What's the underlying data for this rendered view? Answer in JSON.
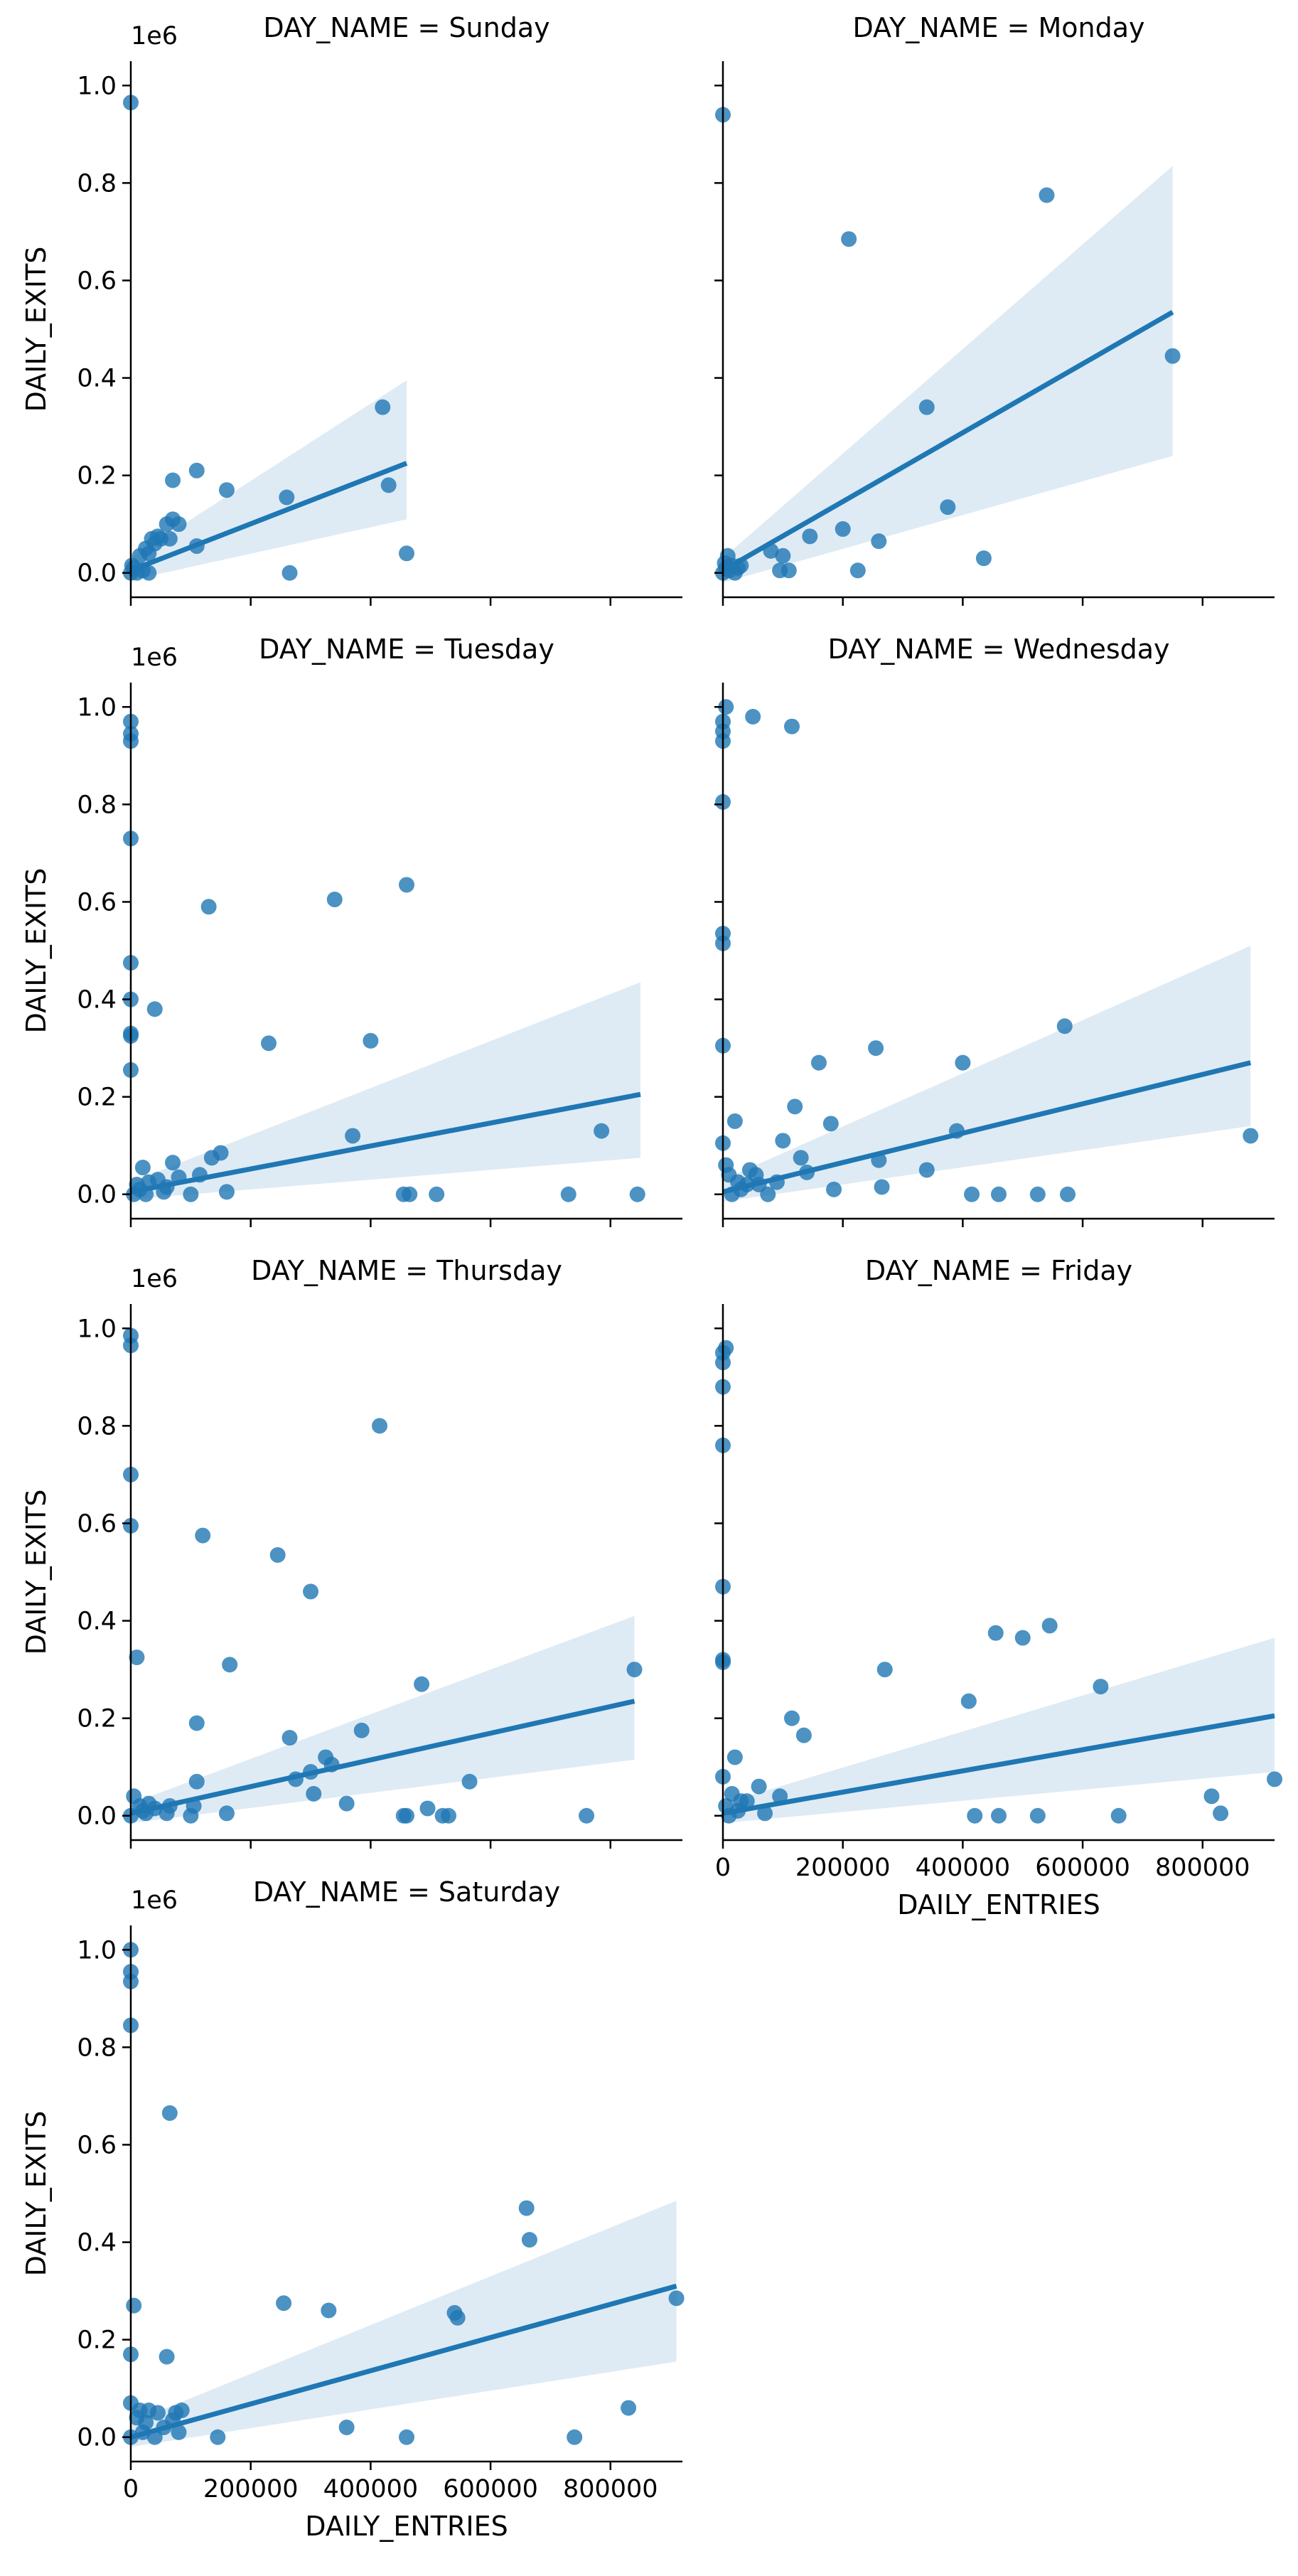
{
  "chart_data": {
    "type": "scatter",
    "facet_variable": "DAY_NAME",
    "xlabel": "DAILY_ENTRIES",
    "ylabel": "DAILY_EXITS",
    "y_offset_label": "1e6",
    "xlim": [
      0,
      920000
    ],
    "ylim": [
      -50000,
      1050000
    ],
    "x_ticks": [
      0,
      200000,
      400000,
      600000,
      800000
    ],
    "x_tick_labels": [
      "0",
      "200000",
      "400000",
      "600000",
      "800000"
    ],
    "y_ticks": [
      0,
      200000,
      400000,
      600000,
      800000,
      1000000
    ],
    "y_tick_labels": [
      "0.0",
      "0.2",
      "0.4",
      "0.6",
      "0.8",
      "1.0"
    ],
    "grid": false,
    "colors": {
      "points": "#1f77b4",
      "line": "#1f77b4",
      "band": "#1f77b4"
    },
    "panels": [
      {
        "title": "DAY_NAME = Sunday",
        "points": [
          [
            0,
            965000
          ],
          [
            0,
            0
          ],
          [
            2000,
            15000
          ],
          [
            5000,
            10000
          ],
          [
            10000,
            0
          ],
          [
            15000,
            35000
          ],
          [
            20000,
            5000
          ],
          [
            25000,
            50000
          ],
          [
            30000,
            40000
          ],
          [
            35000,
            70000
          ],
          [
            40000,
            60000
          ],
          [
            45000,
            75000
          ],
          [
            50000,
            70000
          ],
          [
            30000,
            0
          ],
          [
            60000,
            100000
          ],
          [
            65000,
            70000
          ],
          [
            70000,
            190000
          ],
          [
            70000,
            110000
          ],
          [
            80000,
            100000
          ],
          [
            110000,
            210000
          ],
          [
            110000,
            55000
          ],
          [
            160000,
            170000
          ],
          [
            260000,
            155000
          ],
          [
            265000,
            0
          ],
          [
            420000,
            340000
          ],
          [
            430000,
            180000
          ],
          [
            460000,
            40000
          ]
        ],
        "line": {
          "x0": 0,
          "y0": 5000,
          "x1": 460000,
          "y1": 225000
        },
        "band": {
          "upper_left": 30000,
          "upper_right": 395000,
          "lower_left": -15000,
          "lower_right": 110000
        }
      },
      {
        "title": "DAY_NAME = Monday",
        "points": [
          [
            0,
            940000
          ],
          [
            0,
            0
          ],
          [
            3000,
            20000
          ],
          [
            5000,
            10000
          ],
          [
            8000,
            35000
          ],
          [
            10000,
            5000
          ],
          [
            15000,
            15000
          ],
          [
            20000,
            0
          ],
          [
            25000,
            10000
          ],
          [
            30000,
            15000
          ],
          [
            80000,
            45000
          ],
          [
            95000,
            5000
          ],
          [
            100000,
            35000
          ],
          [
            110000,
            5000
          ],
          [
            145000,
            75000
          ],
          [
            200000,
            90000
          ],
          [
            210000,
            685000
          ],
          [
            225000,
            5000
          ],
          [
            260000,
            65000
          ],
          [
            340000,
            340000
          ],
          [
            375000,
            135000
          ],
          [
            435000,
            30000
          ],
          [
            540000,
            775000
          ],
          [
            750000,
            445000
          ]
        ],
        "line": {
          "x0": 0,
          "y0": 5000,
          "x1": 750000,
          "y1": 535000
        },
        "band": {
          "upper_left": 30000,
          "upper_right": 835000,
          "lower_left": -20000,
          "lower_right": 240000
        }
      },
      {
        "title": "DAY_NAME = Tuesday",
        "points": [
          [
            0,
            970000
          ],
          [
            0,
            945000
          ],
          [
            0,
            930000
          ],
          [
            0,
            730000
          ],
          [
            0,
            475000
          ],
          [
            0,
            400000
          ],
          [
            0,
            330000
          ],
          [
            0,
            325000
          ],
          [
            0,
            255000
          ],
          [
            5000,
            0
          ],
          [
            10000,
            20000
          ],
          [
            15000,
            10000
          ],
          [
            20000,
            55000
          ],
          [
            25000,
            0
          ],
          [
            30000,
            25000
          ],
          [
            40000,
            380000
          ],
          [
            45000,
            30000
          ],
          [
            55000,
            5000
          ],
          [
            60000,
            15000
          ],
          [
            70000,
            65000
          ],
          [
            80000,
            35000
          ],
          [
            100000,
            0
          ],
          [
            115000,
            40000
          ],
          [
            130000,
            590000
          ],
          [
            135000,
            75000
          ],
          [
            150000,
            85000
          ],
          [
            160000,
            5000
          ],
          [
            230000,
            310000
          ],
          [
            340000,
            605000
          ],
          [
            370000,
            120000
          ],
          [
            400000,
            315000
          ],
          [
            455000,
            0
          ],
          [
            460000,
            635000
          ],
          [
            465000,
            0
          ],
          [
            510000,
            0
          ],
          [
            730000,
            0
          ],
          [
            785000,
            130000
          ],
          [
            845000,
            0
          ]
        ],
        "line": {
          "x0": 0,
          "y0": 5000,
          "x1": 850000,
          "y1": 205000
        },
        "band": {
          "upper_left": 25000,
          "upper_right": 435000,
          "lower_left": -10000,
          "lower_right": 75000
        }
      },
      {
        "title": "DAY_NAME = Wednesday",
        "points": [
          [
            0,
            970000
          ],
          [
            0,
            950000
          ],
          [
            0,
            930000
          ],
          [
            0,
            805000
          ],
          [
            0,
            535000
          ],
          [
            0,
            515000
          ],
          [
            0,
            305000
          ],
          [
            0,
            105000
          ],
          [
            5000,
            1000000
          ],
          [
            5000,
            60000
          ],
          [
            10000,
            40000
          ],
          [
            15000,
            0
          ],
          [
            20000,
            150000
          ],
          [
            25000,
            25000
          ],
          [
            30000,
            10000
          ],
          [
            40000,
            20000
          ],
          [
            45000,
            50000
          ],
          [
            50000,
            980000
          ],
          [
            55000,
            40000
          ],
          [
            60000,
            20000
          ],
          [
            75000,
            0
          ],
          [
            90000,
            25000
          ],
          [
            100000,
            110000
          ],
          [
            115000,
            960000
          ],
          [
            120000,
            180000
          ],
          [
            130000,
            75000
          ],
          [
            140000,
            45000
          ],
          [
            160000,
            270000
          ],
          [
            180000,
            145000
          ],
          [
            185000,
            10000
          ],
          [
            255000,
            300000
          ],
          [
            260000,
            70000
          ],
          [
            265000,
            15000
          ],
          [
            340000,
            50000
          ],
          [
            390000,
            130000
          ],
          [
            400000,
            270000
          ],
          [
            415000,
            0
          ],
          [
            460000,
            0
          ],
          [
            525000,
            0
          ],
          [
            570000,
            345000
          ],
          [
            575000,
            0
          ],
          [
            880000,
            120000
          ]
        ],
        "line": {
          "x0": 0,
          "y0": 5000,
          "x1": 880000,
          "y1": 270000
        },
        "band": {
          "upper_left": 30000,
          "upper_right": 510000,
          "lower_left": -15000,
          "lower_right": 140000
        }
      },
      {
        "title": "DAY_NAME = Thursday",
        "points": [
          [
            0,
            985000
          ],
          [
            0,
            965000
          ],
          [
            0,
            700000
          ],
          [
            0,
            595000
          ],
          [
            0,
            0
          ],
          [
            5000,
            40000
          ],
          [
            10000,
            325000
          ],
          [
            15000,
            20000
          ],
          [
            20000,
            10000
          ],
          [
            25000,
            5000
          ],
          [
            30000,
            25000
          ],
          [
            40000,
            15000
          ],
          [
            60000,
            5000
          ],
          [
            65000,
            20000
          ],
          [
            100000,
            0
          ],
          [
            105000,
            20000
          ],
          [
            110000,
            70000
          ],
          [
            110000,
            190000
          ],
          [
            120000,
            575000
          ],
          [
            160000,
            5000
          ],
          [
            165000,
            310000
          ],
          [
            245000,
            535000
          ],
          [
            265000,
            160000
          ],
          [
            275000,
            75000
          ],
          [
            300000,
            90000
          ],
          [
            300000,
            460000
          ],
          [
            305000,
            45000
          ],
          [
            325000,
            120000
          ],
          [
            335000,
            105000
          ],
          [
            360000,
            25000
          ],
          [
            385000,
            175000
          ],
          [
            415000,
            800000
          ],
          [
            455000,
            0
          ],
          [
            460000,
            0
          ],
          [
            485000,
            270000
          ],
          [
            495000,
            15000
          ],
          [
            520000,
            0
          ],
          [
            530000,
            0
          ],
          [
            565000,
            70000
          ],
          [
            760000,
            0
          ],
          [
            840000,
            300000
          ]
        ],
        "line": {
          "x0": 0,
          "y0": 5000,
          "x1": 840000,
          "y1": 235000
        },
        "band": {
          "upper_left": 25000,
          "upper_right": 410000,
          "lower_left": -15000,
          "lower_right": 115000
        }
      },
      {
        "title": "DAY_NAME = Friday",
        "points": [
          [
            0,
            950000
          ],
          [
            0,
            930000
          ],
          [
            0,
            880000
          ],
          [
            0,
            760000
          ],
          [
            0,
            470000
          ],
          [
            0,
            320000
          ],
          [
            0,
            315000
          ],
          [
            0,
            80000
          ],
          [
            5000,
            960000
          ],
          [
            5000,
            20000
          ],
          [
            10000,
            0
          ],
          [
            15000,
            45000
          ],
          [
            20000,
            120000
          ],
          [
            25000,
            10000
          ],
          [
            30000,
            30000
          ],
          [
            40000,
            30000
          ],
          [
            60000,
            60000
          ],
          [
            70000,
            5000
          ],
          [
            95000,
            40000
          ],
          [
            115000,
            200000
          ],
          [
            135000,
            165000
          ],
          [
            270000,
            300000
          ],
          [
            410000,
            235000
          ],
          [
            420000,
            0
          ],
          [
            455000,
            375000
          ],
          [
            460000,
            0
          ],
          [
            500000,
            365000
          ],
          [
            525000,
            0
          ],
          [
            545000,
            390000
          ],
          [
            630000,
            265000
          ],
          [
            660000,
            0
          ],
          [
            815000,
            40000
          ],
          [
            830000,
            5000
          ],
          [
            920000,
            75000
          ]
        ],
        "line": {
          "x0": 0,
          "y0": 5000,
          "x1": 920000,
          "y1": 205000
        },
        "band": {
          "upper_left": 25000,
          "upper_right": 365000,
          "lower_left": -15000,
          "lower_right": 90000
        }
      },
      {
        "title": "DAY_NAME = Saturday",
        "points": [
          [
            0,
            1000000
          ],
          [
            0,
            955000
          ],
          [
            0,
            935000
          ],
          [
            0,
            845000
          ],
          [
            0,
            170000
          ],
          [
            0,
            70000
          ],
          [
            0,
            0
          ],
          [
            5000,
            270000
          ],
          [
            10000,
            40000
          ],
          [
            15000,
            55000
          ],
          [
            20000,
            10000
          ],
          [
            25000,
            30000
          ],
          [
            30000,
            55000
          ],
          [
            40000,
            0
          ],
          [
            45000,
            50000
          ],
          [
            55000,
            20000
          ],
          [
            60000,
            165000
          ],
          [
            65000,
            665000
          ],
          [
            70000,
            35000
          ],
          [
            75000,
            50000
          ],
          [
            80000,
            10000
          ],
          [
            85000,
            55000
          ],
          [
            145000,
            0
          ],
          [
            255000,
            275000
          ],
          [
            330000,
            260000
          ],
          [
            360000,
            20000
          ],
          [
            460000,
            0
          ],
          [
            540000,
            255000
          ],
          [
            545000,
            245000
          ],
          [
            660000,
            470000
          ],
          [
            665000,
            405000
          ],
          [
            740000,
            0
          ],
          [
            830000,
            60000
          ],
          [
            910000,
            285000
          ]
        ],
        "line": {
          "x0": 0,
          "y0": 0,
          "x1": 910000,
          "y1": 310000
        },
        "band": {
          "upper_left": 30000,
          "upper_right": 485000,
          "lower_left": -20000,
          "lower_right": 155000
        }
      }
    ]
  }
}
